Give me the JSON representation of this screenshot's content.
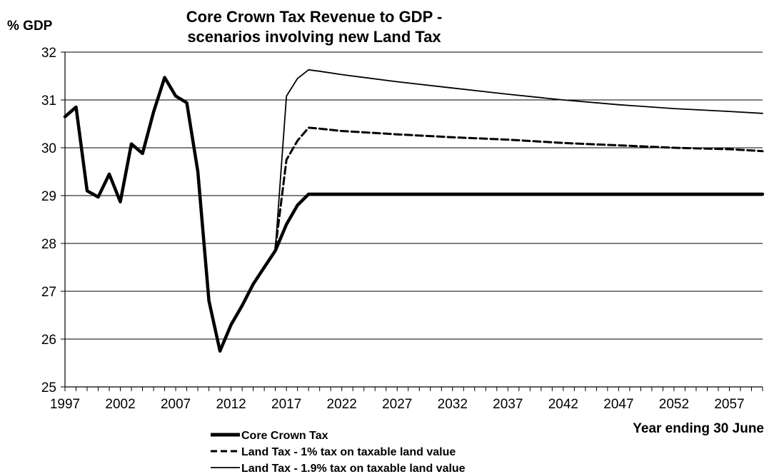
{
  "chart_data": {
    "type": "line",
    "title": "Core Crown Tax Revenue to GDP -",
    "subtitle": "scenarios involving new Land Tax",
    "ylabel": "% GDP",
    "xlabel": "Year ending 30 June",
    "xlim": [
      1997,
      2060
    ],
    "ylim": [
      25,
      32
    ],
    "y_ticks": [
      25,
      26,
      27,
      28,
      29,
      30,
      31,
      32
    ],
    "x_ticks": [
      1997,
      2002,
      2007,
      2012,
      2017,
      2022,
      2027,
      2032,
      2037,
      2042,
      2047,
      2052,
      2057
    ],
    "grid": "horizontal",
    "legend_position": "bottom",
    "series": [
      {
        "name": "Core Crown Tax",
        "style": "thick-solid",
        "x": [
          1997,
          1998,
          1999,
          2000,
          2001,
          2002,
          2003,
          2004,
          2005,
          2006,
          2007,
          2008,
          2009,
          2010,
          2011,
          2012,
          2013,
          2014,
          2015,
          2016,
          2017,
          2018,
          2019,
          2060
        ],
        "y": [
          30.65,
          30.85,
          29.1,
          28.97,
          29.45,
          28.87,
          30.08,
          29.88,
          30.75,
          31.47,
          31.08,
          30.94,
          29.5,
          26.8,
          25.75,
          26.3,
          26.7,
          27.15,
          27.5,
          27.85,
          28.4,
          28.8,
          29.03,
          29.03
        ]
      },
      {
        "name": "Land Tax - 1% tax on taxable land value",
        "style": "dashed",
        "x": [
          2016,
          2017,
          2018,
          2019,
          2020,
          2022,
          2027,
          2032,
          2037,
          2042,
          2047,
          2052,
          2057,
          2060
        ],
        "y": [
          27.9,
          29.75,
          30.15,
          30.42,
          30.4,
          30.35,
          30.28,
          30.22,
          30.17,
          30.1,
          30.05,
          30.0,
          29.97,
          29.93
        ]
      },
      {
        "name": "Land Tax - 1.9% tax on taxable land value",
        "style": "thin-solid",
        "x": [
          2016,
          2017,
          2018,
          2019,
          2020,
          2022,
          2027,
          2032,
          2037,
          2042,
          2047,
          2052,
          2057,
          2060
        ],
        "y": [
          27.9,
          31.08,
          31.45,
          31.63,
          31.6,
          31.53,
          31.38,
          31.25,
          31.12,
          31.0,
          30.9,
          30.82,
          30.76,
          30.72
        ]
      }
    ]
  }
}
